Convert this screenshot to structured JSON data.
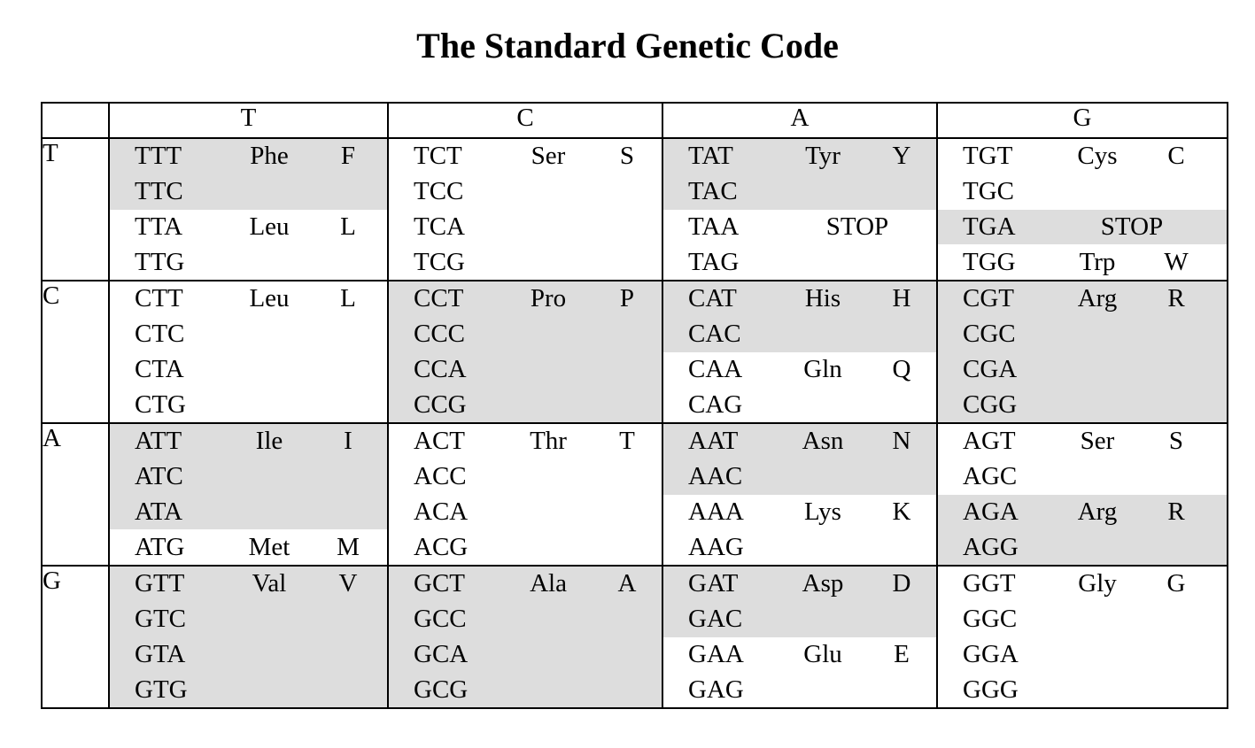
{
  "title": "The Standard Genetic Code",
  "columns": [
    "T",
    "C",
    "A",
    "G"
  ],
  "shade_color": "#dddddd",
  "rows": [
    {
      "first": "T",
      "cells": [
        {
          "entries": [
            {
              "codon": "TTT",
              "aa": "Phe",
              "abbr": "F",
              "shade": true
            },
            {
              "codon": "TTC",
              "aa": "",
              "abbr": "",
              "shade": true
            },
            {
              "codon": "TTA",
              "aa": "Leu",
              "abbr": "L",
              "shade": false
            },
            {
              "codon": "TTG",
              "aa": "",
              "abbr": "",
              "shade": false
            }
          ]
        },
        {
          "entries": [
            {
              "codon": "TCT",
              "aa": "Ser",
              "abbr": "S",
              "shade": false
            },
            {
              "codon": "TCC",
              "aa": "",
              "abbr": "",
              "shade": false
            },
            {
              "codon": "TCA",
              "aa": "",
              "abbr": "",
              "shade": false
            },
            {
              "codon": "TCG",
              "aa": "",
              "abbr": "",
              "shade": false
            }
          ]
        },
        {
          "entries": [
            {
              "codon": "TAT",
              "aa": "Tyr",
              "abbr": "Y",
              "shade": true
            },
            {
              "codon": "TAC",
              "aa": "",
              "abbr": "",
              "shade": true
            },
            {
              "codon": "TAA",
              "aa": "STOP",
              "abbr": "",
              "shade": false,
              "stop": true
            },
            {
              "codon": "TAG",
              "aa": "",
              "abbr": "",
              "shade": false
            }
          ]
        },
        {
          "entries": [
            {
              "codon": "TGT",
              "aa": "Cys",
              "abbr": "C",
              "shade": false
            },
            {
              "codon": "TGC",
              "aa": "",
              "abbr": "",
              "shade": false
            },
            {
              "codon": "TGA",
              "aa": "STOP",
              "abbr": "",
              "shade": true,
              "stop": true
            },
            {
              "codon": "TGG",
              "aa": "Trp",
              "abbr": "W",
              "shade": false
            }
          ]
        }
      ]
    },
    {
      "first": "C",
      "cells": [
        {
          "entries": [
            {
              "codon": "CTT",
              "aa": "Leu",
              "abbr": "L",
              "shade": false
            },
            {
              "codon": "CTC",
              "aa": "",
              "abbr": "",
              "shade": false
            },
            {
              "codon": "CTA",
              "aa": "",
              "abbr": "",
              "shade": false
            },
            {
              "codon": "CTG",
              "aa": "",
              "abbr": "",
              "shade": false
            }
          ]
        },
        {
          "entries": [
            {
              "codon": "CCT",
              "aa": "Pro",
              "abbr": "P",
              "shade": true
            },
            {
              "codon": "CCC",
              "aa": "",
              "abbr": "",
              "shade": true
            },
            {
              "codon": "CCA",
              "aa": "",
              "abbr": "",
              "shade": true
            },
            {
              "codon": "CCG",
              "aa": "",
              "abbr": "",
              "shade": true
            }
          ]
        },
        {
          "entries": [
            {
              "codon": "CAT",
              "aa": "His",
              "abbr": "H",
              "shade": true
            },
            {
              "codon": "CAC",
              "aa": "",
              "abbr": "",
              "shade": true
            },
            {
              "codon": "CAA",
              "aa": "Gln",
              "abbr": "Q",
              "shade": false
            },
            {
              "codon": "CAG",
              "aa": "",
              "abbr": "",
              "shade": false
            }
          ]
        },
        {
          "entries": [
            {
              "codon": "CGT",
              "aa": "Arg",
              "abbr": "R",
              "shade": true
            },
            {
              "codon": "CGC",
              "aa": "",
              "abbr": "",
              "shade": true
            },
            {
              "codon": "CGA",
              "aa": "",
              "abbr": "",
              "shade": true
            },
            {
              "codon": "CGG",
              "aa": "",
              "abbr": "",
              "shade": true
            }
          ]
        }
      ]
    },
    {
      "first": "A",
      "cells": [
        {
          "entries": [
            {
              "codon": "ATT",
              "aa": "Ile",
              "abbr": "I",
              "shade": true
            },
            {
              "codon": "ATC",
              "aa": "",
              "abbr": "",
              "shade": true
            },
            {
              "codon": "ATA",
              "aa": "",
              "abbr": "",
              "shade": true
            },
            {
              "codon": "ATG",
              "aa": "Met",
              "abbr": "M",
              "shade": false
            }
          ]
        },
        {
          "entries": [
            {
              "codon": "ACT",
              "aa": "Thr",
              "abbr": "T",
              "shade": false
            },
            {
              "codon": "ACC",
              "aa": "",
              "abbr": "",
              "shade": false
            },
            {
              "codon": "ACA",
              "aa": "",
              "abbr": "",
              "shade": false
            },
            {
              "codon": "ACG",
              "aa": "",
              "abbr": "",
              "shade": false
            }
          ]
        },
        {
          "entries": [
            {
              "codon": "AAT",
              "aa": "Asn",
              "abbr": "N",
              "shade": true
            },
            {
              "codon": "AAC",
              "aa": "",
              "abbr": "",
              "shade": true
            },
            {
              "codon": "AAA",
              "aa": "Lys",
              "abbr": "K",
              "shade": false
            },
            {
              "codon": "AAG",
              "aa": "",
              "abbr": "",
              "shade": false
            }
          ]
        },
        {
          "entries": [
            {
              "codon": "AGT",
              "aa": "Ser",
              "abbr": "S",
              "shade": false
            },
            {
              "codon": "AGC",
              "aa": "",
              "abbr": "",
              "shade": false
            },
            {
              "codon": "AGA",
              "aa": "Arg",
              "abbr": "R",
              "shade": true
            },
            {
              "codon": "AGG",
              "aa": "",
              "abbr": "",
              "shade": true
            }
          ]
        }
      ]
    },
    {
      "first": "G",
      "cells": [
        {
          "entries": [
            {
              "codon": "GTT",
              "aa": "Val",
              "abbr": "V",
              "shade": true
            },
            {
              "codon": "GTC",
              "aa": "",
              "abbr": "",
              "shade": true
            },
            {
              "codon": "GTA",
              "aa": "",
              "abbr": "",
              "shade": true
            },
            {
              "codon": "GTG",
              "aa": "",
              "abbr": "",
              "shade": true
            }
          ]
        },
        {
          "entries": [
            {
              "codon": "GCT",
              "aa": "Ala",
              "abbr": "A",
              "shade": true
            },
            {
              "codon": "GCC",
              "aa": "",
              "abbr": "",
              "shade": true
            },
            {
              "codon": "GCA",
              "aa": "",
              "abbr": "",
              "shade": true
            },
            {
              "codon": "GCG",
              "aa": "",
              "abbr": "",
              "shade": true
            }
          ]
        },
        {
          "entries": [
            {
              "codon": "GAT",
              "aa": "Asp",
              "abbr": "D",
              "shade": true
            },
            {
              "codon": "GAC",
              "aa": "",
              "abbr": "",
              "shade": true
            },
            {
              "codon": "GAA",
              "aa": "Glu",
              "abbr": "E",
              "shade": false
            },
            {
              "codon": "GAG",
              "aa": "",
              "abbr": "",
              "shade": false
            }
          ]
        },
        {
          "entries": [
            {
              "codon": "GGT",
              "aa": "Gly",
              "abbr": "G",
              "shade": false
            },
            {
              "codon": "GGC",
              "aa": "",
              "abbr": "",
              "shade": false
            },
            {
              "codon": "GGA",
              "aa": "",
              "abbr": "",
              "shade": false
            },
            {
              "codon": "GGG",
              "aa": "",
              "abbr": "",
              "shade": false
            }
          ]
        }
      ]
    }
  ]
}
